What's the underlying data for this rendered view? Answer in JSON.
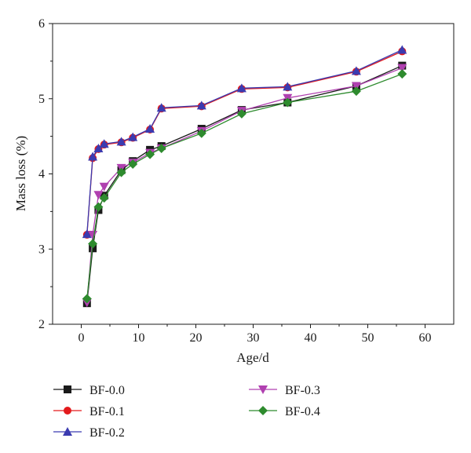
{
  "chart_data": {
    "type": "line",
    "xlabel": "Age/d",
    "ylabel": "Mass loss (%)",
    "xlim": [
      -5,
      65
    ],
    "ylim": [
      2,
      6
    ],
    "x_ticks": [
      0,
      10,
      20,
      30,
      40,
      50,
      60
    ],
    "y_ticks": [
      2,
      3,
      4,
      5,
      6
    ],
    "grid": false,
    "legend_position": "bottom",
    "series": [
      {
        "name": "BF-0.0",
        "color": "#1a1a1a",
        "marker": "square",
        "x": [
          1,
          2,
          3,
          4,
          7,
          9,
          12,
          14,
          21,
          28,
          36,
          48,
          56
        ],
        "y": [
          2.28,
          3.01,
          3.52,
          3.71,
          4.05,
          4.17,
          4.32,
          4.37,
          4.6,
          4.85,
          4.95,
          5.17,
          5.44
        ]
      },
      {
        "name": "BF-0.1",
        "color": "#e31a1c",
        "marker": "circle",
        "x": [
          1,
          2,
          3,
          4,
          7,
          9,
          12,
          14,
          21,
          28,
          36,
          48,
          56
        ],
        "y": [
          3.19,
          4.21,
          4.33,
          4.39,
          4.42,
          4.48,
          4.59,
          4.87,
          4.9,
          5.13,
          5.15,
          5.36,
          5.63
        ]
      },
      {
        "name": "BF-0.2",
        "color": "#3b3bb0",
        "marker": "triangle-up",
        "x": [
          1,
          2,
          3,
          4,
          7,
          9,
          12,
          14,
          21,
          28,
          36,
          48,
          56
        ],
        "y": [
          3.2,
          4.23,
          4.34,
          4.4,
          4.43,
          4.49,
          4.6,
          4.88,
          4.91,
          5.14,
          5.16,
          5.37,
          5.65
        ]
      },
      {
        "name": "BF-0.3",
        "color": "#b040b0",
        "marker": "triangle-down",
        "x": [
          1,
          2,
          3,
          4,
          7,
          9,
          12,
          14,
          21,
          28,
          36,
          48,
          56
        ],
        "y": [
          2.29,
          3.19,
          3.72,
          3.83,
          4.08,
          4.15,
          4.28,
          4.34,
          4.57,
          4.84,
          5.01,
          5.17,
          5.41
        ]
      },
      {
        "name": "BF-0.4",
        "color": "#2e8b2e",
        "marker": "diamond",
        "x": [
          1,
          2,
          3,
          4,
          7,
          9,
          12,
          14,
          21,
          28,
          36,
          48,
          56
        ],
        "y": [
          2.34,
          3.07,
          3.56,
          3.68,
          4.02,
          4.13,
          4.26,
          4.34,
          4.54,
          4.8,
          4.95,
          5.1,
          5.33
        ]
      }
    ]
  }
}
